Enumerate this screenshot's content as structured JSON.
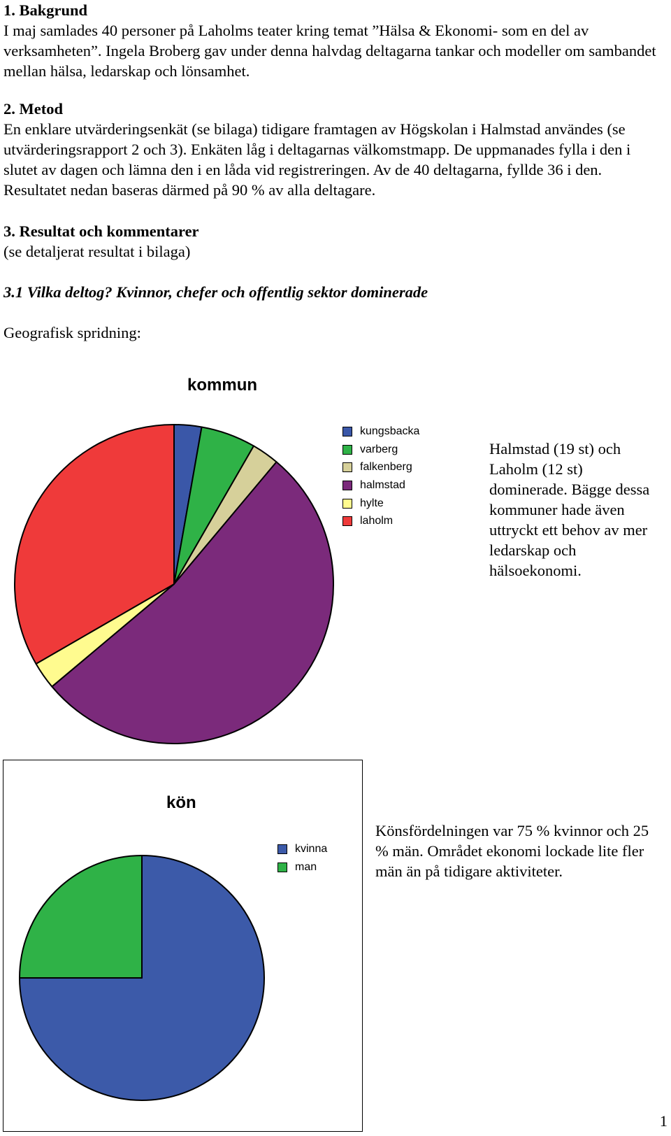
{
  "sections": {
    "s1": {
      "heading": "1. Bakgrund",
      "text": "I maj samlades 40 personer på Laholms teater kring temat ”Hälsa & Ekonomi- som en del av verksamheten”. Ingela Broberg gav under denna halvdag deltagarna tankar och modeller om sambandet mellan hälsa, ledarskap och lönsamhet."
    },
    "s2": {
      "heading": "2. Metod",
      "text": "En enklare utvärderingsenkät (se bilaga) tidigare framtagen av Högskolan i Halmstad användes (se utvärderingsrapport 2 och 3). Enkäten låg i deltagarnas välkomstmapp. De uppmanades fylla i den i slutet av dagen och lämna den i en låda vid registreringen. Av de 40 deltagarna, fyllde 36 i den. Resultatet nedan baseras därmed på 90 % av alla deltagare."
    },
    "s3": {
      "heading": "3. Resultat och kommentarer",
      "text": "(se detaljerat resultat i bilaga)"
    },
    "s31": {
      "heading": "3.1 Vilka deltog? Kvinnor, chefer och offentlig sektor dominerade"
    },
    "geo_label": "Geografisk spridning:"
  },
  "chart_data": [
    {
      "type": "pie",
      "title": "kommun",
      "categories": [
        "kungsbacka",
        "varberg",
        "falkenberg",
        "halmstad",
        "hylte",
        "laholm"
      ],
      "values": [
        1,
        2,
        1,
        19,
        1,
        12
      ],
      "colors": [
        "#3a57a8",
        "#2fb247",
        "#d6d09a",
        "#7b2a7b",
        "#fffb8f",
        "#ef3a3a"
      ],
      "legend": "right"
    },
    {
      "type": "pie",
      "title": "kön",
      "categories": [
        "kvinna",
        "man"
      ],
      "values": [
        75,
        25
      ],
      "colors": [
        "#3c5aa9",
        "#2fb247"
      ],
      "legend": "right"
    }
  ],
  "comments": {
    "kommun": "Halmstad (19 st) och Laholm (12 st) dominerade. Bägge dessa kommuner hade även uttryckt ett behov av mer ledarskap och hälsoekonomi.",
    "kon": "Könsfördelningen var 75 % kvinnor och 25 % män. Området ekonomi lockade lite fler män än på tidigare aktiviteter."
  },
  "page_number": "1"
}
